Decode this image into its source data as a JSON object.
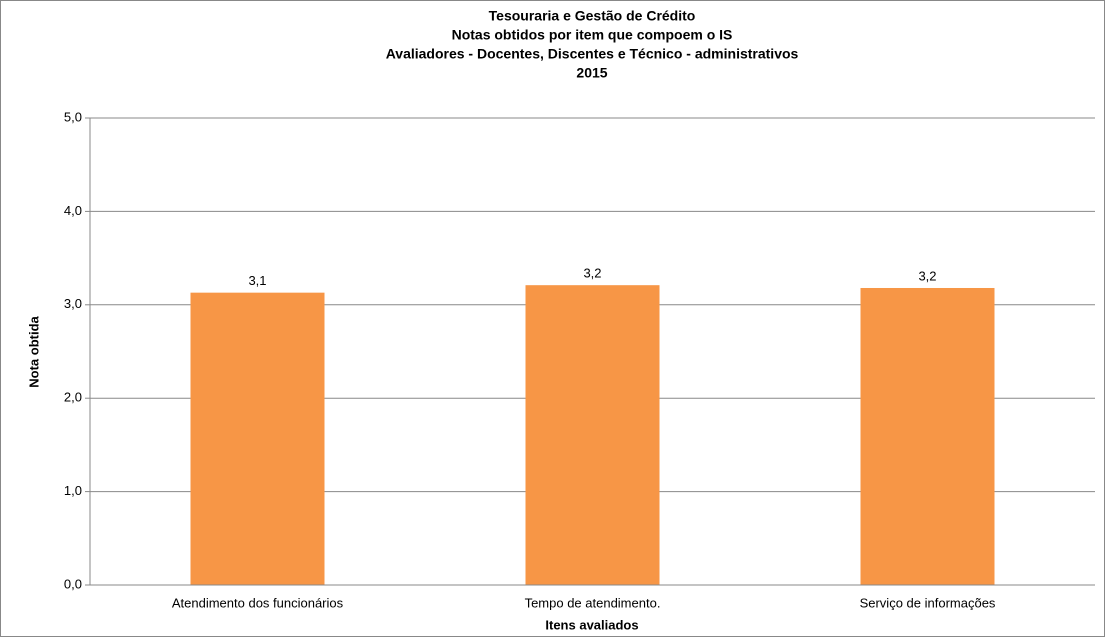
{
  "chart_data": {
    "type": "bar",
    "title": [
      "Tesouraria e Gestão de Crédito",
      "Notas  obtidos por item que compoem o IS",
      "Avaliadores - Docentes, Discentes e Técnico  - administrativos",
      "2015"
    ],
    "categories": [
      "Atendimento dos funcionários",
      "Tempo de atendimento.",
      "Serviço de informações"
    ],
    "values": [
      3.13,
      3.21,
      3.18
    ],
    "value_labels": [
      "3,1",
      "3,2",
      "3,2"
    ],
    "color": "#f79646",
    "x_label": "Itens avaliados",
    "y_label": "Nota obtida",
    "ylim": [
      0,
      5
    ],
    "yticks": [
      {
        "value": 0,
        "label": "0,0"
      },
      {
        "value": 1,
        "label": "1,0"
      },
      {
        "value": 2,
        "label": "2,0"
      },
      {
        "value": 3,
        "label": "3,0"
      },
      {
        "value": 4,
        "label": "4,0"
      },
      {
        "value": 5,
        "label": "5,0"
      }
    ],
    "grid": true
  }
}
